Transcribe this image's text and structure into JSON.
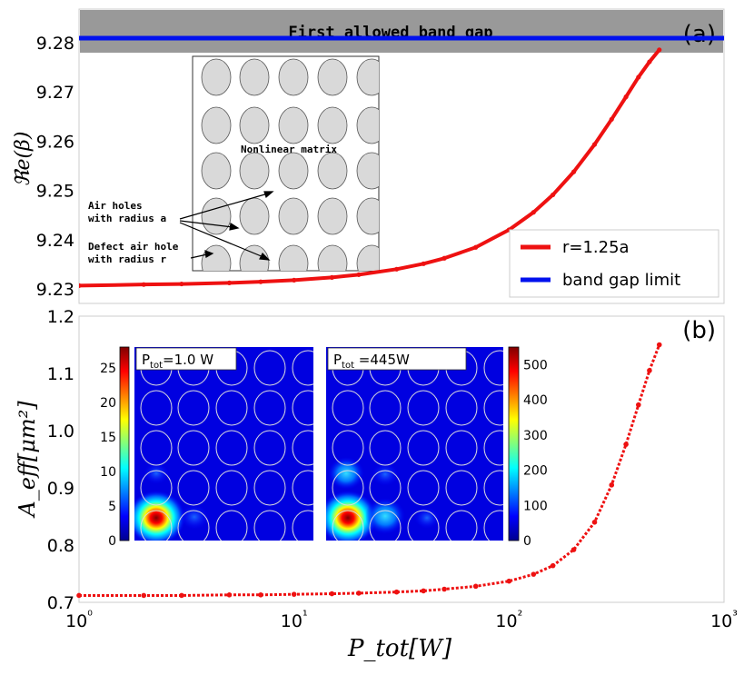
{
  "chart_data": [
    {
      "type": "line",
      "panel_label": "(a)",
      "band_label": "First allowed band gap",
      "ylabel": "ℜe(β)",
      "xscale": "log",
      "xlim": [
        1,
        1000
      ],
      "ylim": [
        9.23,
        9.28
      ],
      "yticks": [
        "9.23",
        "9.24",
        "9.25",
        "9.26",
        "9.27",
        "9.28"
      ],
      "ytick_values": [
        9.2307,
        9.2397,
        9.2487,
        9.2577,
        9.2667,
        9.2757
      ],
      "band_gap_limit": 9.2767,
      "grid": false,
      "legend_position": "bottom-right",
      "series": [
        {
          "name": "r=1.25a",
          "color": "#ee1111",
          "x": [
            1,
            2,
            3,
            5,
            7,
            10,
            15,
            20,
            30,
            40,
            50,
            70,
            100,
            130,
            160,
            200,
            250,
            300,
            350,
            400,
            450,
            500
          ],
          "y": [
            9.2313,
            9.2315,
            9.2316,
            9.2318,
            9.232,
            9.2323,
            9.2328,
            9.2333,
            9.2343,
            9.2353,
            9.2363,
            9.2383,
            9.2415,
            9.2447,
            9.2479,
            9.2521,
            9.2571,
            9.2617,
            9.2658,
            9.2694,
            9.2722,
            9.2744
          ]
        },
        {
          "name": "band gap limit",
          "color": "#0011ee",
          "x": [
            1,
            1000
          ],
          "y": [
            9.2767,
            9.2767
          ]
        }
      ],
      "inset": {
        "labels": [
          "Nonlinear matrix",
          "Air holes\nwith radius a",
          "Defect air hole\nwith radius r"
        ]
      }
    },
    {
      "type": "line",
      "panel_label": "(b)",
      "xlabel": "P_tot[W]",
      "ylabel": "A_eff[μm²]",
      "xscale": "log",
      "xlim": [
        1,
        1000
      ],
      "ylim": [
        0.7,
        1.2
      ],
      "yticks": [
        "0.7",
        "0.8",
        "0.9",
        "1.0",
        "1.1",
        "1.2"
      ],
      "xticks": [
        "10⁰",
        "10¹",
        "10²",
        "10³"
      ],
      "grid": false,
      "series": [
        {
          "name": "",
          "color": "#ee1111",
          "x": [
            1,
            2,
            3,
            5,
            7,
            10,
            15,
            20,
            30,
            40,
            50,
            70,
            100,
            130,
            160,
            200,
            250,
            300,
            350,
            400,
            450,
            500
          ],
          "y": [
            0.712,
            0.712,
            0.712,
            0.713,
            0.713,
            0.714,
            0.715,
            0.716,
            0.718,
            0.72,
            0.723,
            0.728,
            0.737,
            0.749,
            0.764,
            0.792,
            0.84,
            0.905,
            0.976,
            1.045,
            1.105,
            1.15
          ]
        }
      ],
      "insets": [
        {
          "title": "P_tot=1.0 W",
          "colorbar_ticks": [
            "0",
            "5",
            "10",
            "15",
            "20",
            "25"
          ],
          "colorbar_range": [
            0,
            28
          ]
        },
        {
          "title": "P_tot=445W",
          "colorbar_ticks": [
            "0",
            "100",
            "200",
            "300",
            "400",
            "500"
          ],
          "colorbar_range": [
            0,
            550
          ]
        }
      ]
    }
  ]
}
